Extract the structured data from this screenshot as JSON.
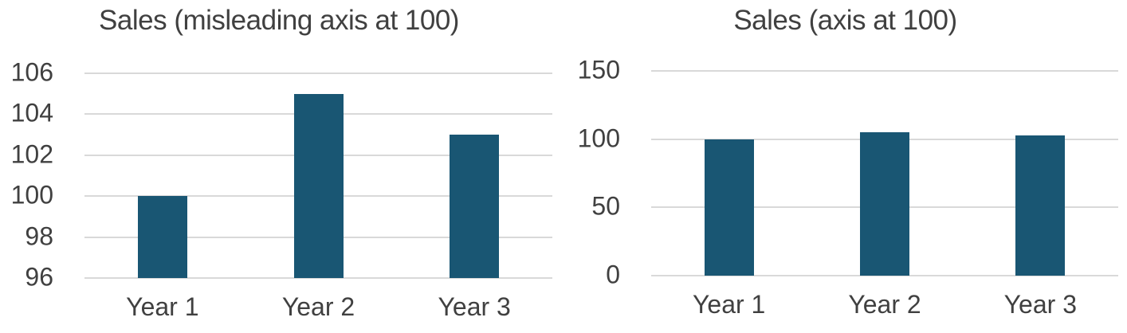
{
  "figure": {
    "background": "#FFFFFF",
    "description": "Two bar charts of identical sales data shown with different y-axis ranges"
  },
  "chart_data": [
    {
      "type": "bar",
      "title": "Sales (misleading axis at 100)",
      "categories": [
        "Year 1",
        "Year 2",
        "Year 3"
      ],
      "values": [
        100,
        105,
        103
      ],
      "xlabel": "",
      "ylabel": "",
      "ylim": [
        96,
        106
      ],
      "yticks": [
        106,
        104,
        102,
        100,
        98,
        96
      ],
      "grid": true,
      "legend": "none",
      "bar_color": "#195673",
      "text_color": "#404040",
      "gridline_color": "#D9D9D9"
    },
    {
      "type": "bar",
      "title": "Sales (axis at 100)",
      "categories": [
        "Year 1",
        "Year 2",
        "Year 3"
      ],
      "values": [
        100,
        105,
        103
      ],
      "xlabel": "",
      "ylabel": "",
      "ylim": [
        0,
        150
      ],
      "yticks": [
        150,
        100,
        50,
        0
      ],
      "grid": true,
      "legend": "none",
      "bar_color": "#195673",
      "text_color": "#404040",
      "gridline_color": "#D9D9D9"
    }
  ]
}
